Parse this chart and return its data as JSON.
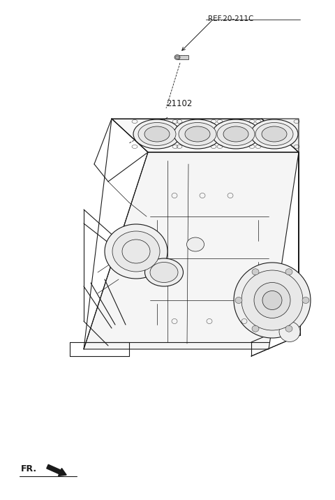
{
  "background_color": "#ffffff",
  "line_color": "#1a1a1a",
  "fig_width": 4.8,
  "fig_height": 7.16,
  "dpi": 100,
  "ref_label": "REF.20-211C",
  "part_label": "21102",
  "fr_label": "FR."
}
